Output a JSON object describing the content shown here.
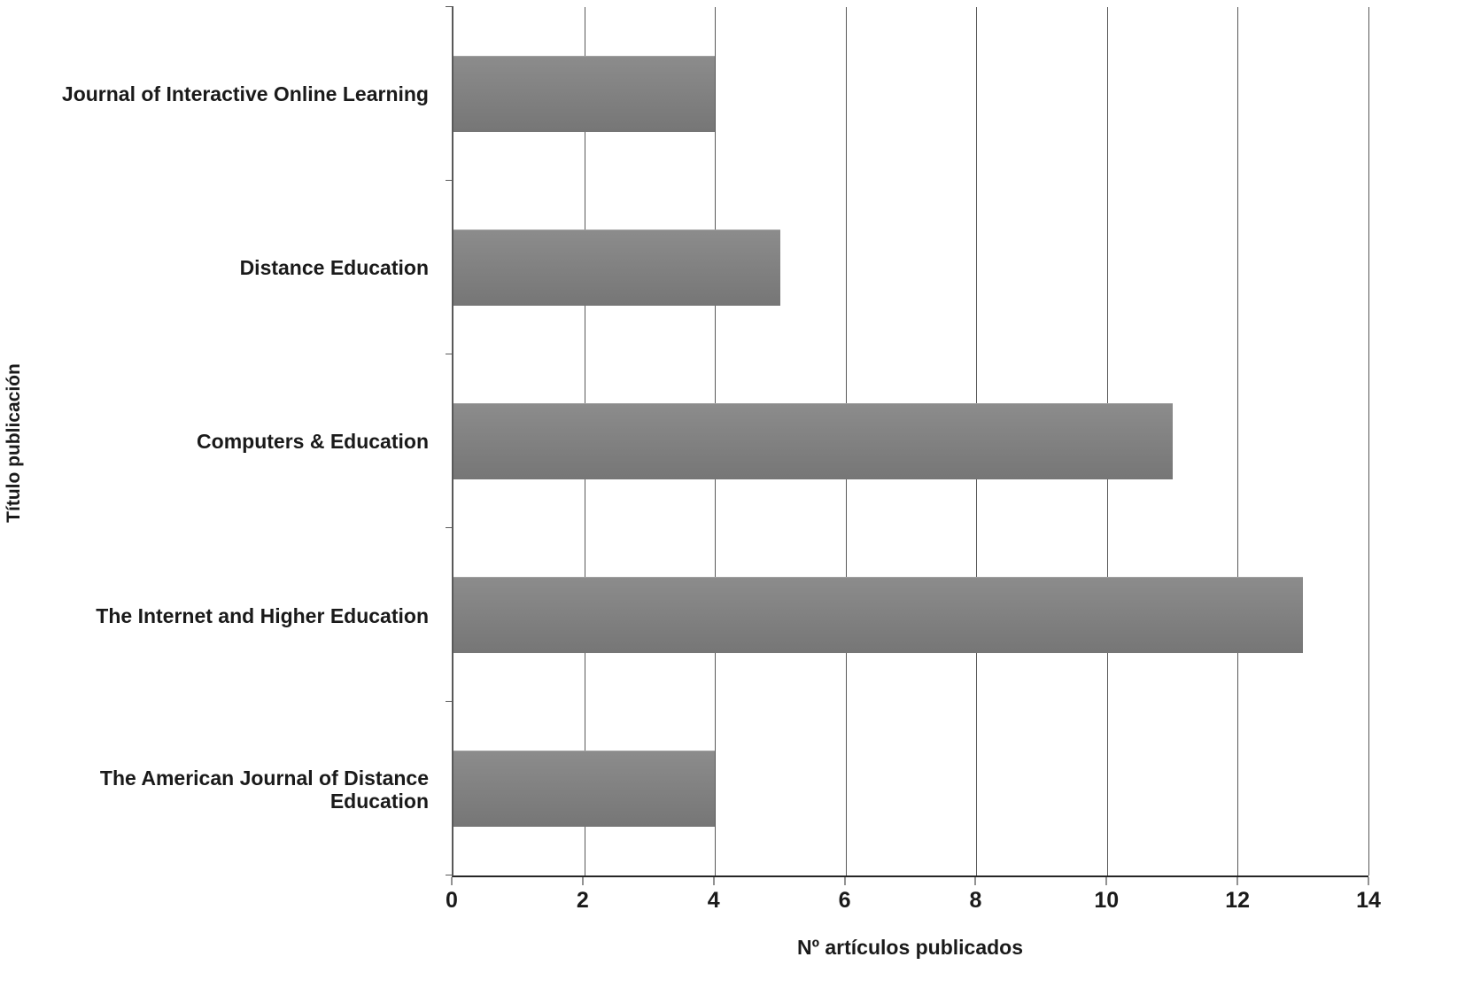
{
  "chart_data": {
    "type": "bar",
    "orientation": "horizontal",
    "title": "",
    "categories": [
      "Journal of Interactive Online Learning",
      "Distance Education",
      "Computers & Education",
      "The Internet and Higher Education",
      "The American Journal of Distance Education"
    ],
    "values": [
      4,
      5,
      11,
      13,
      4
    ],
    "xlabel": "Nº artículos publicados",
    "ylabel": "Título publicación",
    "xlim": [
      0,
      14
    ],
    "xticks": [
      0,
      2,
      4,
      6,
      8,
      10,
      12,
      14
    ],
    "grid": true,
    "legend": "none",
    "bar_color": "#808080",
    "gridline_color": "#595959",
    "background": "#ffffff"
  }
}
